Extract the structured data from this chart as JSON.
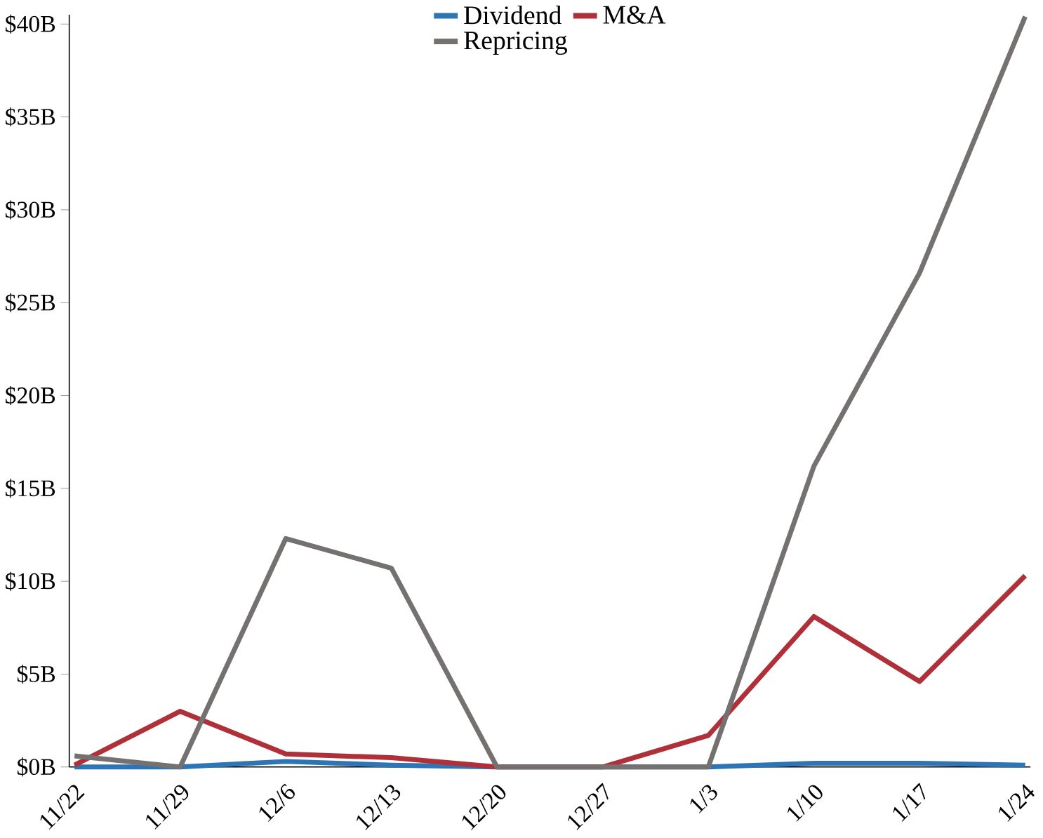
{
  "chart_data": {
    "type": "line",
    "categories": [
      "11/22",
      "11/29",
      "12/6",
      "12/13",
      "12/20",
      "12/27",
      "1/3",
      "1/10",
      "1/17",
      "1/24"
    ],
    "series": [
      {
        "name": "Dividend",
        "color": "#2e75b6",
        "values": [
          0,
          0,
          0.3,
          0.1,
          0,
          0,
          0,
          0.2,
          0.2,
          0.1
        ]
      },
      {
        "name": "M&A",
        "color": "#b0303a",
        "values": [
          0.1,
          3.0,
          0.7,
          0.5,
          0,
          0,
          1.7,
          8.1,
          4.6,
          10.3
        ]
      },
      {
        "name": "Repricing",
        "color": "#757171",
        "values": [
          0.6,
          0,
          12.3,
          10.7,
          0,
          0,
          0,
          16.2,
          26.6,
          40.4
        ]
      }
    ],
    "ylim": [
      0,
      40.5
    ],
    "yticks": [
      {
        "value": 0,
        "label": "$0B"
      },
      {
        "value": 5,
        "label": "$5B"
      },
      {
        "value": 10,
        "label": "$10B"
      },
      {
        "value": 15,
        "label": "$15B"
      },
      {
        "value": 20,
        "label": "$20B"
      },
      {
        "value": 25,
        "label": "$25B"
      },
      {
        "value": 30,
        "label": "$30B"
      },
      {
        "value": 35,
        "label": "$35B"
      },
      {
        "value": 40,
        "label": "$40B"
      }
    ],
    "legend": "top",
    "marker": "none",
    "line_style": "solid",
    "grid": false
  }
}
